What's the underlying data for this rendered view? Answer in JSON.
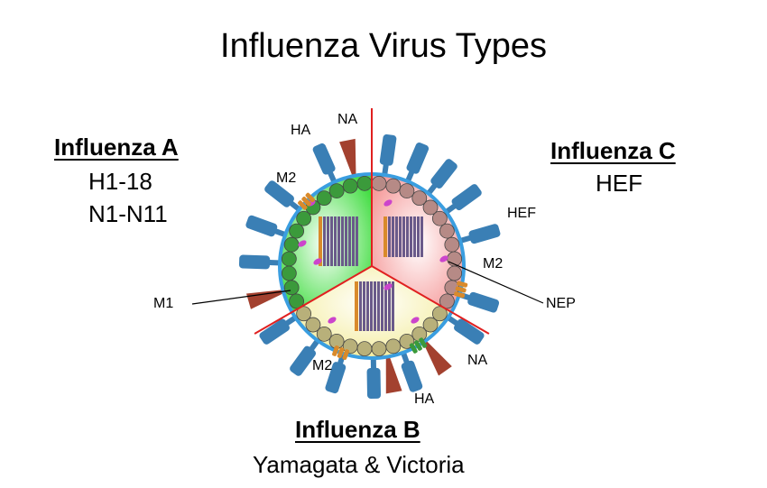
{
  "title": "Influenza Virus Types",
  "influenza_a": {
    "heading": "Influenza A",
    "lines": [
      "H1-18",
      "N1-N11"
    ]
  },
  "influenza_b": {
    "heading": "Influenza B",
    "lines": [
      "Yamagata & Victoria"
    ]
  },
  "influenza_c": {
    "heading": "Influenza C",
    "lines": [
      "HEF"
    ]
  },
  "labels": {
    "ha_top": "HA",
    "na_top": "NA",
    "m2_a": "M2",
    "m1": "M1",
    "hef": "HEF",
    "m2_c": "M2",
    "nep": "NEP",
    "m2_b": "M2",
    "na_b": "NA",
    "ha_b": "HA"
  },
  "colors": {
    "ha_spike": "#3a7fb5",
    "na_spike": "#a3412f",
    "m2": "#d98a2b",
    "envelope": "#3a9ee0",
    "divider": "#e02020",
    "sector_a": "#44dd44",
    "sector_b": "#f5f0a8",
    "sector_c": "#f7b0b0",
    "m1_a": "#3b9a3b",
    "m1_b": "#b8b07a",
    "m1_c": "#b68a86",
    "nep": "#cc44cc",
    "rnp": "#6a5a8a"
  }
}
